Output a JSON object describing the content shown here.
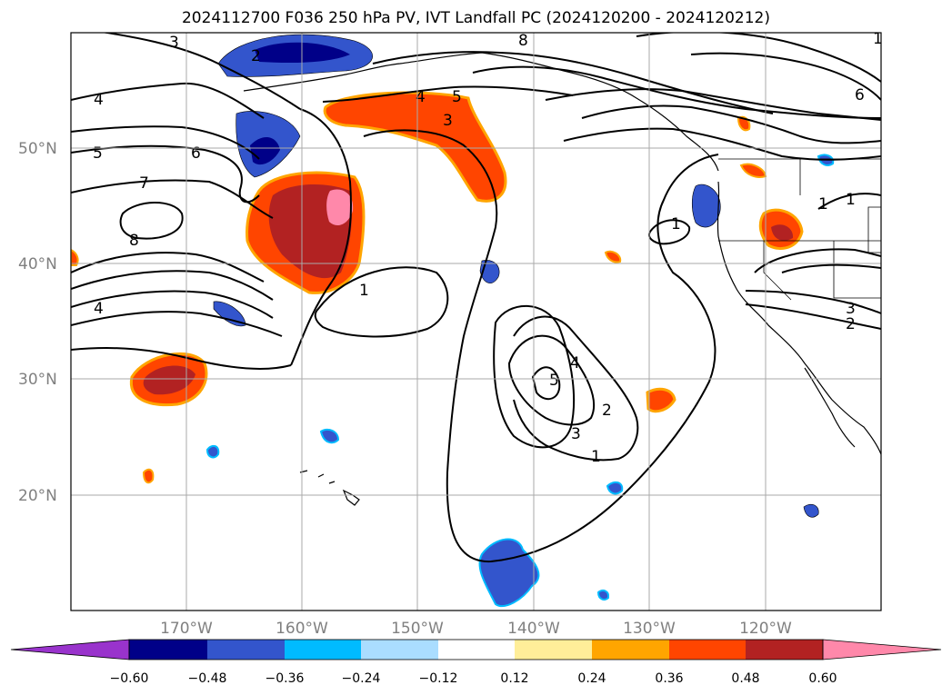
{
  "title": "2024112700 F036 250 hPa PV, IVT Landfall PC (2024120200 - 2024120212)",
  "map": {
    "lat_labels": [
      "50°N",
      "40°N",
      "30°N",
      "20°N"
    ],
    "lon_labels": [
      "170°W",
      "160°W",
      "150°W",
      "140°W",
      "130°W",
      "120°W"
    ]
  },
  "contour_labels": [
    "3",
    "2",
    "8",
    "4",
    "5",
    "4",
    "5",
    "3",
    "6",
    "7",
    "8",
    "1",
    "1",
    "1",
    "4",
    "5",
    "4",
    "3",
    "2",
    "1",
    "3",
    "2",
    "1",
    "6",
    "1"
  ],
  "colorbar": {
    "colors": [
      "#9933cc",
      "#000088",
      "#3355cc",
      "#00bbff",
      "#aaddff",
      "#ffffff",
      "#ffee99",
      "#ffa500",
      "#ff4500",
      "#b22222",
      "#ff88aa"
    ],
    "tick_labels": [
      "−0.60",
      "−0.48",
      "−0.36",
      "−0.24",
      "−0.12",
      "0.12",
      "0.24",
      "0.36",
      "0.48",
      "0.60"
    ]
  }
}
